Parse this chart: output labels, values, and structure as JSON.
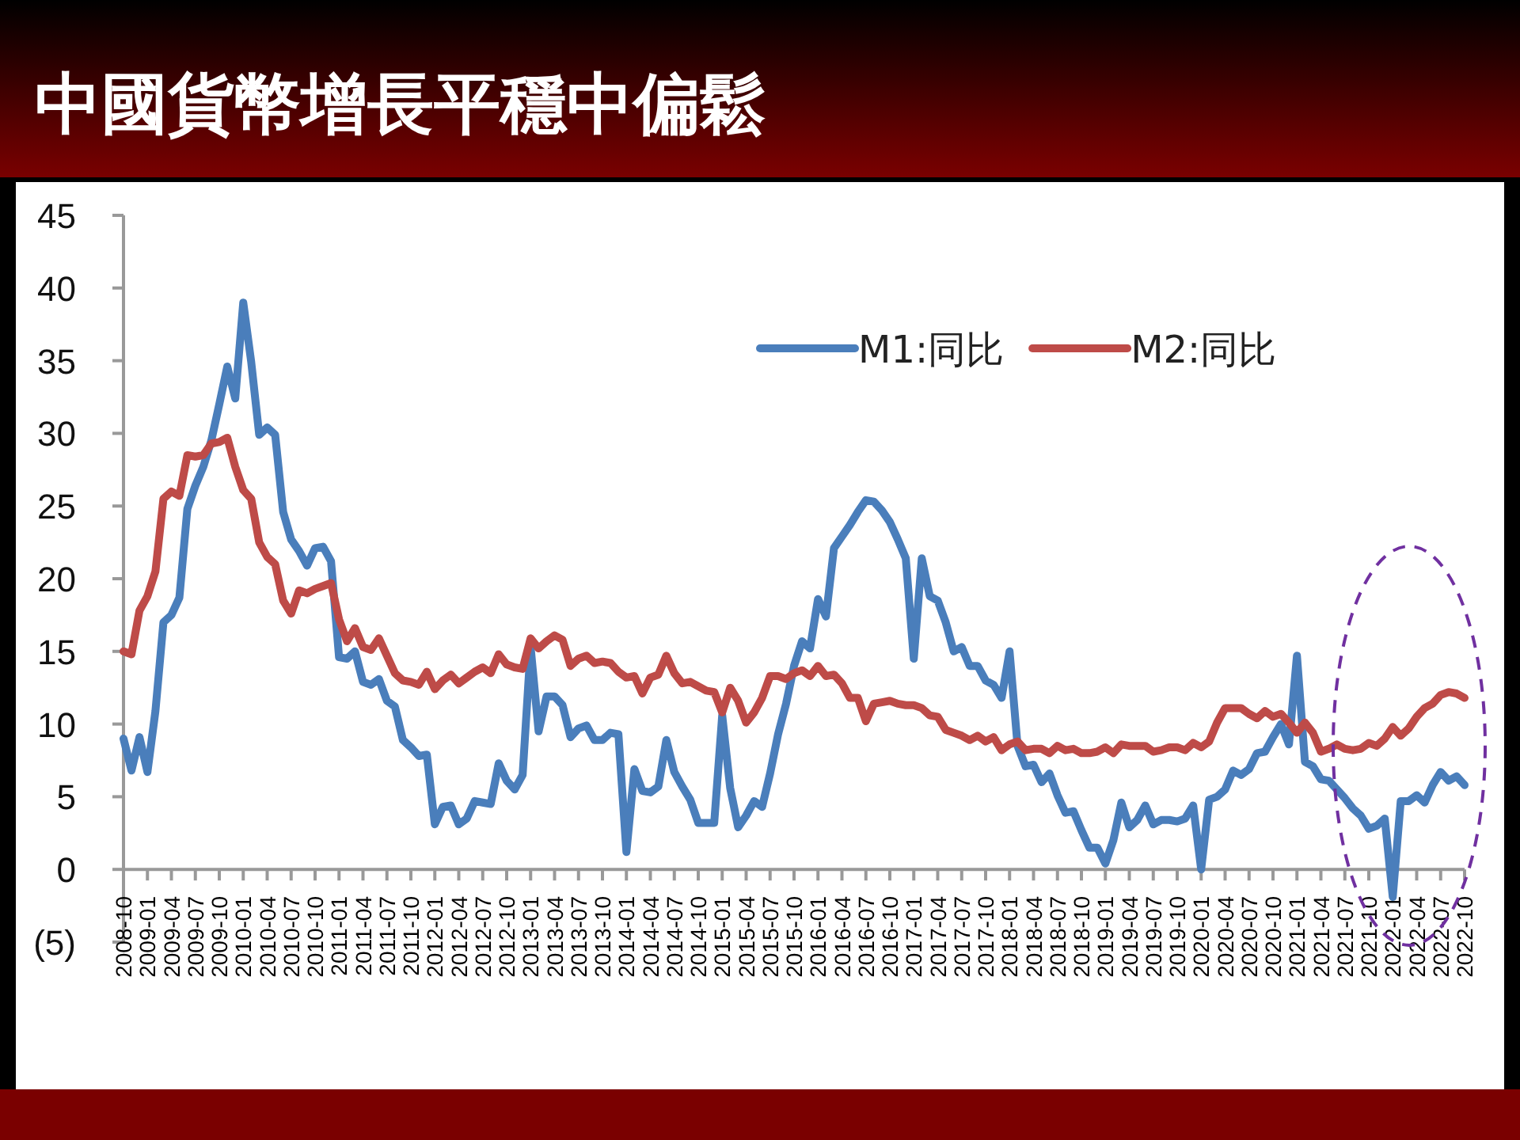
{
  "chart_data": {
    "type": "line",
    "title": "中國貨幣增長平穩中偏鬆",
    "x": [
      "2008-10",
      "2008-11",
      "2008-12",
      "2009-01",
      "2009-02",
      "2009-03",
      "2009-04",
      "2009-05",
      "2009-06",
      "2009-07",
      "2009-08",
      "2009-09",
      "2009-10",
      "2009-11",
      "2009-12",
      "2010-01",
      "2010-02",
      "2010-03",
      "2010-04",
      "2010-05",
      "2010-06",
      "2010-07",
      "2010-08",
      "2010-09",
      "2010-10",
      "2010-11",
      "2010-12",
      "2011-01",
      "2011-02",
      "2011-03",
      "2011-04",
      "2011-05",
      "2011-06",
      "2011-07",
      "2011-08",
      "2011-09",
      "2011-10",
      "2011-11",
      "2011-12",
      "2012-01",
      "2012-02",
      "2012-03",
      "2012-04",
      "2012-05",
      "2012-06",
      "2012-07",
      "2012-08",
      "2012-09",
      "2012-10",
      "2012-11",
      "2012-12",
      "2013-01",
      "2013-02",
      "2013-03",
      "2013-04",
      "2013-05",
      "2013-06",
      "2013-07",
      "2013-08",
      "2013-09",
      "2013-10",
      "2013-11",
      "2013-12",
      "2014-01",
      "2014-02",
      "2014-03",
      "2014-04",
      "2014-05",
      "2014-06",
      "2014-07",
      "2014-08",
      "2014-09",
      "2014-10",
      "2014-11",
      "2014-12",
      "2015-01",
      "2015-02",
      "2015-03",
      "2015-04",
      "2015-05",
      "2015-06",
      "2015-07",
      "2015-08",
      "2015-09",
      "2015-10",
      "2015-11",
      "2015-12",
      "2016-01",
      "2016-02",
      "2016-03",
      "2016-04",
      "2016-05",
      "2016-06",
      "2016-07",
      "2016-08",
      "2016-09",
      "2016-10",
      "2016-11",
      "2016-12",
      "2017-01",
      "2017-02",
      "2017-03",
      "2017-04",
      "2017-05",
      "2017-06",
      "2017-07",
      "2017-08",
      "2017-09",
      "2017-10",
      "2017-11",
      "2017-12",
      "2018-01",
      "2018-02",
      "2018-03",
      "2018-04",
      "2018-05",
      "2018-06",
      "2018-07",
      "2018-08",
      "2018-09",
      "2018-10",
      "2018-11",
      "2018-12",
      "2019-01",
      "2019-02",
      "2019-03",
      "2019-04",
      "2019-05",
      "2019-06",
      "2019-07",
      "2019-08",
      "2019-09",
      "2019-10",
      "2019-11",
      "2019-12",
      "2020-01",
      "2020-02",
      "2020-03",
      "2020-04",
      "2020-05",
      "2020-06",
      "2020-07",
      "2020-08",
      "2020-09",
      "2020-10",
      "2020-11",
      "2020-12",
      "2021-01",
      "2021-02",
      "2021-03",
      "2021-04",
      "2021-05",
      "2021-06",
      "2021-07",
      "2021-08",
      "2021-09",
      "2021-10",
      "2021-11",
      "2021-12",
      "2022-01",
      "2022-02",
      "2022-03",
      "2022-04",
      "2022-05",
      "2022-06",
      "2022-07",
      "2022-08",
      "2022-09",
      "2022-10"
    ],
    "series": [
      {
        "name": "M1:同比",
        "color": "#4a7ebb",
        "values": [
          9.0,
          6.8,
          9.1,
          6.7,
          10.9,
          17.0,
          17.5,
          18.7,
          24.8,
          26.4,
          27.7,
          29.5,
          32.0,
          34.6,
          32.4,
          39.0,
          34.9,
          29.9,
          30.4,
          29.9,
          24.6,
          22.7,
          21.9,
          20.9,
          22.1,
          22.2,
          21.2,
          14.6,
          14.5,
          15.0,
          12.9,
          12.7,
          13.1,
          11.6,
          11.2,
          8.9,
          8.4,
          7.8,
          7.9,
          3.1,
          4.3,
          4.4,
          3.1,
          3.5,
          4.7,
          4.6,
          4.5,
          7.3,
          6.1,
          5.5,
          6.5,
          15.3,
          9.5,
          11.9,
          11.9,
          11.3,
          9.1,
          9.7,
          9.9,
          8.9,
          8.9,
          9.4,
          9.3,
          1.2,
          6.9,
          5.4,
          5.3,
          5.7,
          8.9,
          6.7,
          5.7,
          4.8,
          3.2,
          3.2,
          3.2,
          10.6,
          5.6,
          2.9,
          3.7,
          4.7,
          4.3,
          6.6,
          9.3,
          11.4,
          14.0,
          15.7,
          15.2,
          18.6,
          17.4,
          22.1,
          22.9,
          23.7,
          24.6,
          25.4,
          25.3,
          24.7,
          23.9,
          22.7,
          21.4,
          14.5,
          21.4,
          18.8,
          18.5,
          17.0,
          15.0,
          15.3,
          14.0,
          14.0,
          13.0,
          12.7,
          11.8,
          15.0,
          8.5,
          7.1,
          7.2,
          6.0,
          6.6,
          5.1,
          3.9,
          4.0,
          2.7,
          1.5,
          1.5,
          0.4,
          2.0,
          4.6,
          2.9,
          3.4,
          4.4,
          3.1,
          3.4,
          3.4,
          3.3,
          3.5,
          4.4,
          0.0,
          4.8,
          5.0,
          5.5,
          6.8,
          6.5,
          6.9,
          8.0,
          8.1,
          9.1,
          10.0,
          8.6,
          14.7,
          7.4,
          7.1,
          6.2,
          6.1,
          5.5,
          4.9,
          4.2,
          3.7,
          2.8,
          3.0,
          3.5,
          -1.9,
          4.7,
          4.7,
          5.1,
          4.6,
          5.8,
          6.7,
          6.1,
          6.4,
          5.8
        ]
      },
      {
        "name": "M2:同比",
        "color": "#be4b48",
        "values": [
          15.0,
          14.8,
          17.8,
          18.8,
          20.5,
          25.5,
          26.0,
          25.7,
          28.5,
          28.4,
          28.5,
          29.3,
          29.4,
          29.7,
          27.7,
          26.1,
          25.5,
          22.5,
          21.5,
          21.0,
          18.5,
          17.6,
          19.2,
          19.0,
          19.3,
          19.5,
          19.7,
          17.2,
          15.7,
          16.6,
          15.3,
          15.1,
          15.9,
          14.7,
          13.5,
          13.0,
          12.9,
          12.7,
          13.6,
          12.4,
          13.0,
          13.4,
          12.8,
          13.2,
          13.6,
          13.9,
          13.5,
          14.8,
          14.1,
          13.9,
          13.8,
          15.9,
          15.2,
          15.7,
          16.1,
          15.8,
          14.0,
          14.5,
          14.7,
          14.2,
          14.3,
          14.2,
          13.6,
          13.2,
          13.3,
          12.1,
          13.2,
          13.4,
          14.7,
          13.5,
          12.8,
          12.9,
          12.6,
          12.3,
          12.2,
          10.8,
          12.5,
          11.6,
          10.1,
          10.8,
          11.8,
          13.3,
          13.3,
          13.1,
          13.5,
          13.7,
          13.3,
          14.0,
          13.3,
          13.4,
          12.8,
          11.8,
          11.8,
          10.2,
          11.4,
          11.5,
          11.6,
          11.4,
          11.3,
          11.3,
          11.1,
          10.6,
          10.5,
          9.6,
          9.4,
          9.2,
          8.9,
          9.2,
          8.8,
          9.1,
          8.2,
          8.6,
          8.8,
          8.2,
          8.3,
          8.3,
          8.0,
          8.5,
          8.2,
          8.3,
          8.0,
          8.0,
          8.1,
          8.4,
          8.0,
          8.6,
          8.5,
          8.5,
          8.5,
          8.1,
          8.2,
          8.4,
          8.4,
          8.2,
          8.7,
          8.4,
          8.8,
          10.1,
          11.1,
          11.1,
          11.1,
          10.7,
          10.4,
          10.9,
          10.5,
          10.7,
          10.1,
          9.4,
          10.1,
          9.4,
          8.1,
          8.3,
          8.6,
          8.3,
          8.2,
          8.3,
          8.7,
          8.5,
          9.0,
          9.8,
          9.2,
          9.7,
          10.5,
          11.1,
          11.4,
          12.0,
          12.2,
          12.1,
          11.8
        ]
      }
    ],
    "xlim": [
      "2008-10",
      "2022-10"
    ],
    "xticks": [
      "2008-10",
      "2009-01",
      "2009-04",
      "2009-07",
      "2009-10",
      "2010-01",
      "2010-04",
      "2010-07",
      "2010-10",
      "2011-01",
      "2011-04",
      "2011-07",
      "2011-10",
      "2012-01",
      "2012-04",
      "2012-07",
      "2012-10",
      "2013-01",
      "2013-04",
      "2013-07",
      "2013-10",
      "2014-01",
      "2014-04",
      "2014-07",
      "2014-10",
      "2015-01",
      "2015-04",
      "2015-07",
      "2015-10",
      "2016-01",
      "2016-04",
      "2016-07",
      "2016-10",
      "2017-01",
      "2017-04",
      "2017-07",
      "2017-10",
      "2018-01",
      "2018-04",
      "2018-07",
      "2018-10",
      "2019-01",
      "2019-04",
      "2019-07",
      "2019-10",
      "2020-01",
      "2020-04",
      "2020-07",
      "2020-10",
      "2021-01",
      "2021-04",
      "2021-07",
      "2021-10",
      "2022-01",
      "2022-04",
      "2022-07",
      "2022-10"
    ],
    "ylim": [
      -5,
      45
    ],
    "yticks": [
      {
        "value": -5,
        "label": "(5)"
      },
      0,
      5,
      10,
      15,
      20,
      25,
      30,
      35,
      40,
      45
    ],
    "grid": false,
    "legend": "top",
    "marker": "none",
    "line_style": "solid"
  }
}
